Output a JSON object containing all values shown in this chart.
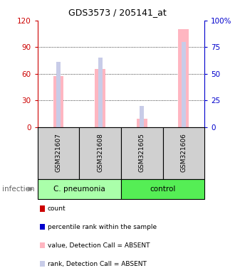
{
  "title": "GDS3573 / 205141_at",
  "samples": [
    "GSM321607",
    "GSM321608",
    "GSM321605",
    "GSM321606"
  ],
  "value_bars": [
    57,
    65,
    9,
    110
  ],
  "rank_bars": [
    61,
    65,
    20,
    80
  ],
  "bar_color_absent": "#ffb6c1",
  "rank_color_absent": "#c8cce8",
  "ylim_left": [
    0,
    120
  ],
  "ylim_right": [
    0,
    100
  ],
  "yticks_left": [
    0,
    30,
    60,
    90,
    120
  ],
  "ytick_labels_left": [
    "0",
    "30",
    "60",
    "90",
    "120"
  ],
  "yticks_right": [
    0,
    25,
    50,
    75,
    100
  ],
  "ytick_labels_right": [
    "0",
    "25",
    "50",
    "75",
    "100%"
  ],
  "left_axis_color": "#cc0000",
  "right_axis_color": "#0000cc",
  "group1_label": "C. pneumonia",
  "group2_label": "control",
  "group1_color": "#aaffaa",
  "group2_color": "#55ee55",
  "group_label": "infection",
  "legend_items": [
    {
      "color": "#cc0000",
      "label": "count"
    },
    {
      "color": "#0000cd",
      "label": "percentile rank within the sample"
    },
    {
      "color": "#ffb6c1",
      "label": "value, Detection Call = ABSENT"
    },
    {
      "color": "#c8cce8",
      "label": "rank, Detection Call = ABSENT"
    }
  ],
  "sample_box_color": "#d0d0d0",
  "chart_bg": "#ffffff",
  "bar_width": 0.25,
  "rank_bar_width": 0.1
}
